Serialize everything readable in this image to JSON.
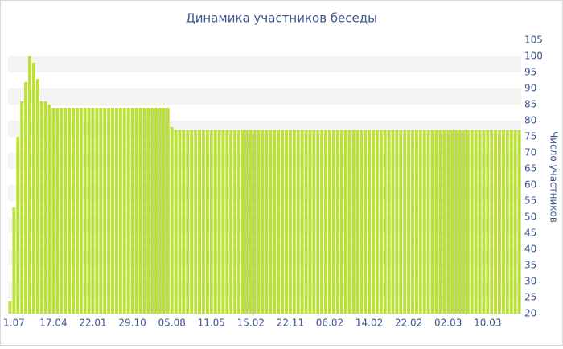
{
  "chart_data": {
    "type": "bar",
    "title": "Динамика участников беседы",
    "y_axis_label": "Число участников",
    "categories": [
      null,
      "1.07",
      null,
      null,
      null,
      null,
      null,
      null,
      null,
      null,
      null,
      "17.04",
      null,
      null,
      null,
      null,
      null,
      null,
      null,
      null,
      null,
      "22.01",
      null,
      null,
      null,
      null,
      null,
      null,
      null,
      null,
      null,
      "29.10",
      null,
      null,
      null,
      null,
      null,
      null,
      null,
      null,
      null,
      "05.08",
      null,
      null,
      null,
      null,
      null,
      null,
      null,
      null,
      null,
      "11.05",
      null,
      null,
      null,
      null,
      null,
      null,
      null,
      null,
      null,
      "15.02",
      null,
      null,
      null,
      null,
      null,
      null,
      null,
      null,
      null,
      "22.11",
      null,
      null,
      null,
      null,
      null,
      null,
      null,
      null,
      null,
      "06.02",
      null,
      null,
      null,
      null,
      null,
      null,
      null,
      null,
      null,
      "14.02",
      null,
      null,
      null,
      null,
      null,
      null,
      null,
      null,
      null,
      "22.02",
      null,
      null,
      null,
      null,
      null,
      null,
      null,
      null,
      null,
      "02.03",
      null,
      null,
      null,
      null,
      null,
      null,
      null,
      null,
      null,
      "10.03",
      null,
      null,
      null,
      null,
      null,
      null,
      null,
      null
    ],
    "values": [
      24,
      53,
      75,
      86,
      92,
      100,
      98,
      93,
      86,
      86,
      85,
      84,
      84,
      84,
      84,
      84,
      84,
      84,
      84,
      84,
      84,
      84,
      84,
      84,
      84,
      84,
      84,
      84,
      84,
      84,
      84,
      84,
      84,
      84,
      84,
      84,
      84,
      84,
      84,
      84,
      84,
      78,
      77,
      77,
      77,
      77,
      77,
      77,
      77,
      77,
      77,
      77,
      77,
      77,
      77,
      77,
      77,
      77,
      77,
      77,
      77,
      77,
      77,
      77,
      77,
      77,
      77,
      77,
      77,
      77,
      77,
      77,
      77,
      77,
      77,
      77,
      77,
      77,
      77,
      77,
      77,
      77,
      77,
      77,
      77,
      77,
      77,
      77,
      77,
      77,
      77,
      77,
      77,
      77,
      77,
      77,
      77,
      77,
      77,
      77,
      77,
      77,
      77,
      77,
      77,
      77,
      77,
      77,
      77,
      77,
      77,
      77,
      77,
      77,
      77,
      77,
      77,
      77,
      77,
      77,
      77,
      77,
      77,
      77,
      77,
      77,
      77,
      77,
      77,
      77
    ],
    "color": "#bbe03a",
    "ylim": [
      20,
      105
    ],
    "yticks": [
      20,
      25,
      30,
      35,
      40,
      45,
      50,
      55,
      60,
      65,
      70,
      75,
      80,
      85,
      90,
      95,
      100,
      105
    ],
    "grid": "bands",
    "y_axis_side": "right"
  }
}
